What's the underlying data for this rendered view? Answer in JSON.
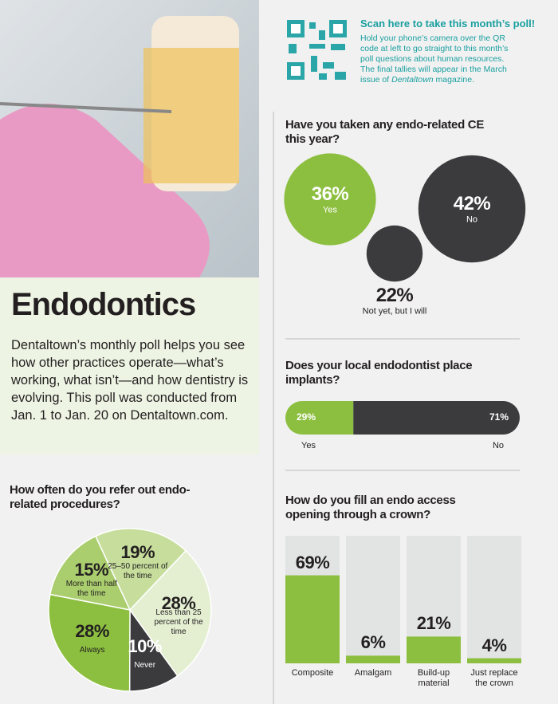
{
  "header": {
    "title": "Endodontics",
    "description": "Dentaltown’s monthly poll helps you see how other practices operate—what’s working, what isn’t—and how dentistry is evolving. This poll was conducted from Jan. 1 to Jan. 20 on Dentaltown.com."
  },
  "poll": {
    "heading": "Scan here to take this month’s poll!",
    "text": "Hold your phone’s camera over the QR code at left to go straight to this month’s poll questions about human resources. The final tallies will appear in the March issue of ",
    "magazine": "Dentaltown",
    "text_end": " magazine."
  },
  "chart_data": [
    {
      "type": "bubble",
      "title": "Have you taken any endo-related CE this year?",
      "categories": [
        "Yes",
        "No",
        "Not yet, but I will"
      ],
      "values": [
        36,
        42,
        22
      ],
      "value_labels": [
        "36%",
        "42%",
        "22%"
      ],
      "colors": [
        "#8cbf3f",
        "#3b3b3d",
        "#3b3b3d"
      ]
    },
    {
      "type": "stacked_bar",
      "title": "Does your local endodontist place implants?",
      "categories": [
        "Yes",
        "No"
      ],
      "values": [
        29,
        71
      ],
      "value_labels": [
        "29%",
        "71%"
      ],
      "colors": [
        "#8cbf3f",
        "#3b3b3d"
      ]
    },
    {
      "type": "bar",
      "title": "How do you fill an endo access opening through a crown?",
      "categories": [
        "Composite",
        "Amalgam",
        "Build-up material",
        "Just replace the crown"
      ],
      "values": [
        69,
        6,
        21,
        4
      ],
      "value_labels": [
        "69%",
        "6%",
        "21%",
        "4%"
      ],
      "ylim": [
        0,
        100
      ],
      "color": "#8cbf3f"
    },
    {
      "type": "pie",
      "title": "How often do you refer out endo-related procedures?",
      "categories": [
        "25–50 percent of the time",
        "Less than 25 percent of the time",
        "Never",
        "Always",
        "More than half the time"
      ],
      "values": [
        19,
        28,
        10,
        28,
        15
      ],
      "value_labels": [
        "19%",
        "28%",
        "10%",
        "28%",
        "15%"
      ],
      "colors": [
        "#c6dd9c",
        "#e4efd2",
        "#3b3b3d",
        "#8cbf3f",
        "#aacd6e"
      ]
    }
  ]
}
